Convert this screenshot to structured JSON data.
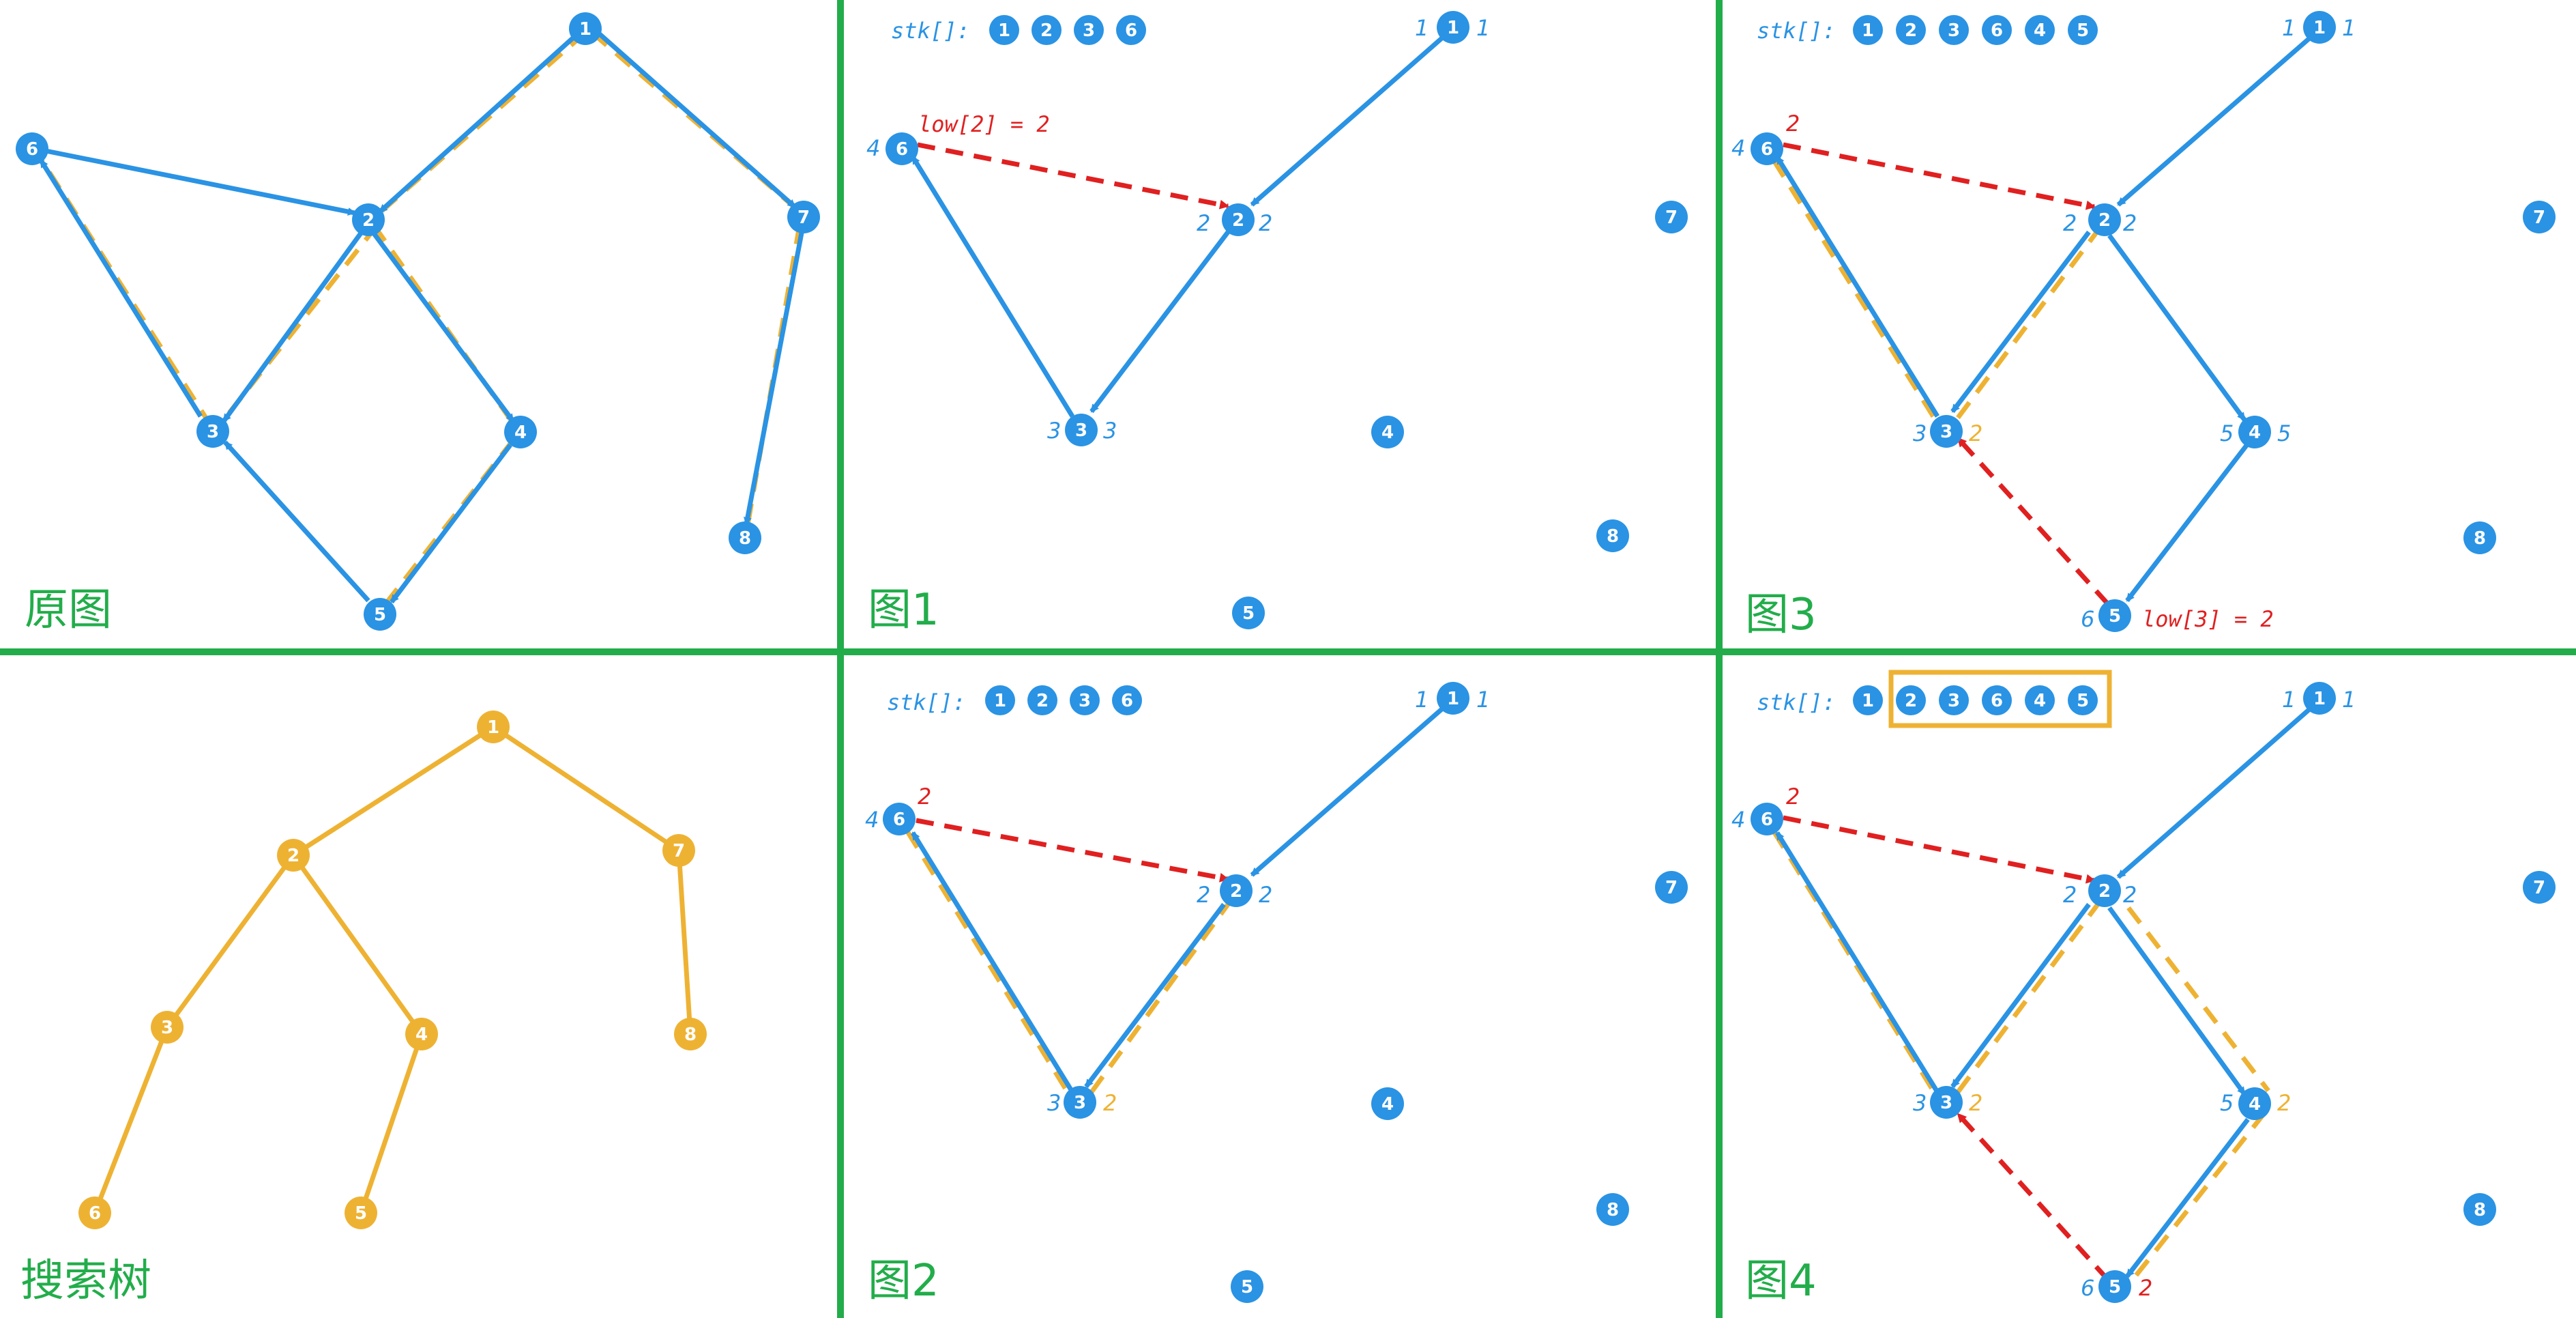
{
  "panels": [
    {
      "id": "orig",
      "title": "原图"
    },
    {
      "id": "tree",
      "title": "搜索树"
    },
    {
      "id": "fig1",
      "title": "图1"
    },
    {
      "id": "fig2",
      "title": "图2"
    },
    {
      "id": "fig3",
      "title": "图3"
    },
    {
      "id": "fig4",
      "title": "图4"
    }
  ],
  "stack_label": "stk[]:",
  "stack_fig1": [
    "1",
    "2",
    "3",
    "6"
  ],
  "stack_fig2": [
    "1",
    "2",
    "3",
    "6"
  ],
  "stack_fig3": [
    "1",
    "2",
    "3",
    "6",
    "4",
    "5"
  ],
  "stack_fig4": [
    "1",
    "2",
    "3",
    "6",
    "4",
    "5"
  ],
  "low_fig1": "low[2] = 2",
  "low_fig3": "low[3] = 2",
  "colors": {
    "blue": "#2a93e4",
    "red": "#e02020",
    "yellow": "#eeb233",
    "green": "#22ad4a"
  }
}
